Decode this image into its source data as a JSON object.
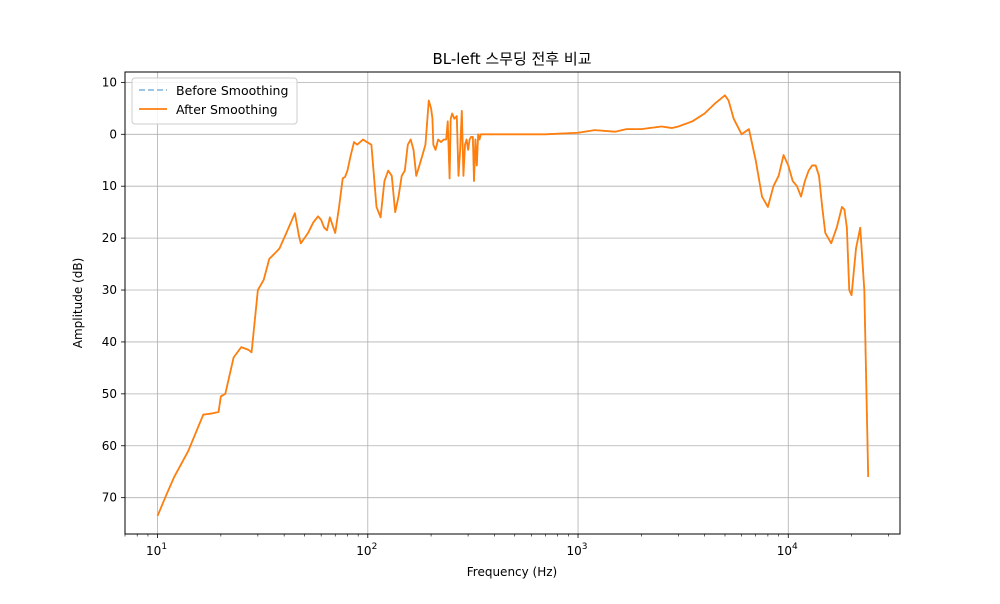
{
  "chart_data": {
    "type": "line",
    "title": "BL-left 스무딩 전후 비교",
    "xlabel": "Frequency (Hz)",
    "ylabel": "Amplitude (dB)",
    "x_scale": "log",
    "xlim": [
      7.0,
      34000
    ],
    "ylim": [
      -77,
      12
    ],
    "x_tick_labels": [
      {
        "base": "10",
        "exp": "1"
      },
      {
        "base": "10",
        "exp": "2"
      },
      {
        "base": "10",
        "exp": "3"
      },
      {
        "base": "10",
        "exp": "4"
      }
    ],
    "y_ticks": [
      10,
      0,
      -10,
      -20,
      -30,
      -40,
      -50,
      -60,
      -70
    ],
    "y_tick_labels": [
      "10",
      "0",
      "\u000110",
      "\u000120",
      "\u000130",
      "\u000140",
      "\u000150",
      "\u000160",
      "\u000170"
    ],
    "grid": true,
    "legend_position": "upper-left",
    "series": [
      {
        "name": "Before Smoothing",
        "color": "#7fb2dd",
        "style": "dashed",
        "x": [
          10,
          11,
          12,
          14,
          16.5,
          18,
          19.5,
          20,
          21,
          23,
          25,
          27,
          28,
          30,
          32,
          34,
          36,
          38,
          41,
          45,
          47,
          48,
          50,
          52,
          55,
          58,
          60,
          62,
          64,
          66,
          70,
          73,
          76,
          78,
          80,
          83,
          86,
          89,
          92,
          95,
          99,
          104,
          110,
          115,
          120,
          125,
          130,
          135,
          140,
          145,
          150,
          155,
          160,
          165,
          170,
          176,
          182,
          188,
          195,
          200,
          203,
          205,
          210,
          216,
          223,
          230,
          236,
          240,
          245,
          248,
          252,
          258,
          265,
          270,
          275,
          280,
          285,
          290,
          295,
          300,
          305,
          310,
          316,
          320,
          325,
          330,
          335,
          340,
          345,
          350,
          360,
          380,
          400,
          500,
          700,
          1000,
          1200,
          1500,
          1700,
          2000,
          2500,
          2800,
          3000,
          3500,
          4000,
          4500,
          5000,
          5200,
          5500,
          6000,
          6500,
          7000,
          7500,
          8000,
          8500,
          9000,
          9500,
          10000,
          10500,
          11000,
          11500,
          12000,
          12500,
          13000,
          13500,
          14000,
          14500,
          15000,
          16000,
          17000,
          18000,
          18500,
          19000,
          19500,
          20000,
          21000,
          22000,
          23000,
          24000
        ],
        "y": [
          -73.5,
          -69.5,
          -66,
          -61,
          -54,
          -53.8,
          -53.5,
          -50.5,
          -50,
          -43,
          -41,
          -41.5,
          -42,
          -30,
          -28,
          -24,
          -23,
          -22,
          -19,
          -15.2,
          -19.5,
          -21,
          -20,
          -19,
          -17,
          -15.8,
          -16.5,
          -18,
          -18.5,
          -16,
          -19,
          -14,
          -8.5,
          -8.2,
          -7,
          -4,
          -1.5,
          -2,
          -1.5,
          -1,
          -1.5,
          -2,
          -14,
          -16,
          -9,
          -7,
          -8,
          -15,
          -12,
          -8,
          -7,
          -2,
          -1,
          -3,
          -8,
          -6,
          -4,
          -2,
          6.5,
          5,
          3,
          -2,
          -3,
          -1,
          -1.5,
          -1,
          -1,
          2.5,
          -8.5,
          3,
          4,
          3,
          3.5,
          -8,
          -3,
          4.5,
          -8,
          -2,
          -1,
          -3,
          -1,
          -0.5,
          -0.5,
          -9,
          -1,
          -6,
          0,
          -1,
          0,
          0,
          0,
          0,
          0,
          0,
          0,
          0.3,
          0.8,
          0.5,
          1,
          1,
          1.5,
          1.2,
          1.5,
          2.5,
          4,
          6,
          7.5,
          6.5,
          3,
          0,
          1,
          -5,
          -12,
          -14,
          -10,
          -8,
          -4,
          -6,
          -9,
          -10,
          -12,
          -9,
          -7,
          -6,
          -6,
          -8,
          -14,
          -19,
          -21,
          -18,
          -14,
          -14.5,
          -18,
          -30,
          -31,
          -22,
          -18,
          -30,
          -66
        ]
      },
      {
        "name": "After Smoothing",
        "color": "#ff7f0e",
        "style": "solid",
        "x": [
          10,
          11,
          12,
          14,
          16.5,
          18,
          19.5,
          20,
          21,
          23,
          25,
          27,
          28,
          30,
          32,
          34,
          36,
          38,
          41,
          45,
          47,
          48,
          50,
          52,
          55,
          58,
          60,
          62,
          64,
          66,
          70,
          73,
          76,
          78,
          80,
          83,
          86,
          89,
          92,
          95,
          99,
          104,
          110,
          115,
          120,
          125,
          130,
          135,
          140,
          145,
          150,
          155,
          160,
          165,
          170,
          176,
          182,
          188,
          195,
          200,
          203,
          205,
          210,
          216,
          223,
          230,
          236,
          240,
          245,
          248,
          252,
          258,
          265,
          270,
          275,
          280,
          285,
          290,
          295,
          300,
          305,
          310,
          316,
          320,
          325,
          330,
          335,
          340,
          345,
          350,
          360,
          380,
          400,
          500,
          700,
          1000,
          1200,
          1500,
          1700,
          2000,
          2500,
          2800,
          3000,
          3500,
          4000,
          4500,
          5000,
          5200,
          5500,
          6000,
          6500,
          7000,
          7500,
          8000,
          8500,
          9000,
          9500,
          10000,
          10500,
          11000,
          11500,
          12000,
          12500,
          13000,
          13500,
          14000,
          14500,
          15000,
          16000,
          17000,
          18000,
          18500,
          19000,
          19500,
          20000,
          21000,
          22000,
          23000,
          24000
        ],
        "y": [
          -73.5,
          -69.5,
          -66,
          -61,
          -54,
          -53.8,
          -53.5,
          -50.5,
          -50,
          -43,
          -41,
          -41.5,
          -42,
          -30,
          -28,
          -24,
          -23,
          -22,
          -19,
          -15.2,
          -19.5,
          -21,
          -20,
          -19,
          -17,
          -15.8,
          -16.5,
          -18,
          -18.5,
          -16,
          -19,
          -14,
          -8.5,
          -8.2,
          -7,
          -4,
          -1.5,
          -2,
          -1.5,
          -1,
          -1.5,
          -2,
          -14,
          -16,
          -9,
          -7,
          -8,
          -15,
          -12,
          -8,
          -7,
          -2,
          -1,
          -3,
          -8,
          -6,
          -4,
          -2,
          6.5,
          5,
          3,
          -2,
          -3,
          -1,
          -1.5,
          -1,
          -1,
          2.5,
          -8.5,
          3,
          4,
          3,
          3.5,
          -8,
          -3,
          4.5,
          -8,
          -2,
          -1,
          -3,
          -1,
          -0.5,
          -0.5,
          -9,
          -1,
          -6,
          0,
          -1,
          0,
          0,
          0,
          0,
          0,
          0,
          0,
          0.3,
          0.8,
          0.5,
          1,
          1,
          1.5,
          1.2,
          1.5,
          2.5,
          4,
          6,
          7.5,
          6.5,
          3,
          0,
          1,
          -5,
          -12,
          -14,
          -10,
          -8,
          -4,
          -6,
          -9,
          -10,
          -12,
          -9,
          -7,
          -6,
          -6,
          -8,
          -14,
          -19,
          -21,
          -18,
          -14,
          -14.5,
          -18,
          -30,
          -31,
          -22,
          -18,
          -30,
          -66
        ]
      }
    ]
  }
}
